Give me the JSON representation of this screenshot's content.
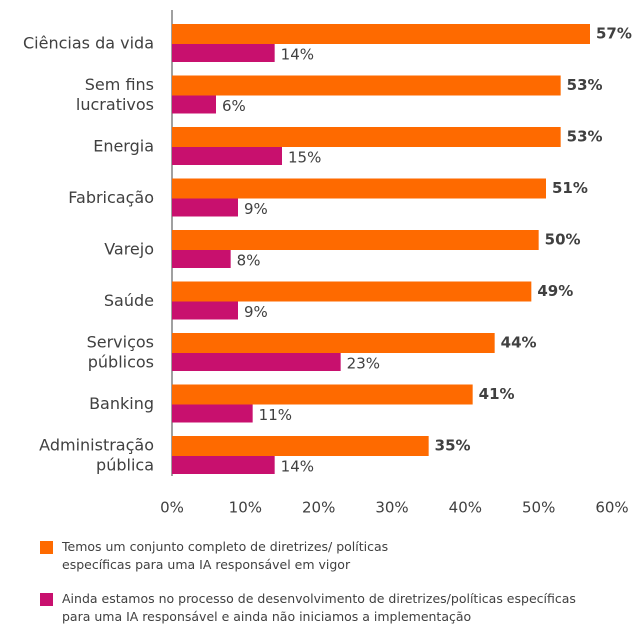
{
  "chart_data": {
    "type": "hbar",
    "categories": [
      [
        "Ciências da vida"
      ],
      [
        "Sem fins",
        "lucrativos"
      ],
      [
        "Energia"
      ],
      [
        "Fabricação"
      ],
      [
        "Varejo"
      ],
      [
        "Saúde"
      ],
      [
        "Serviços",
        "públicos"
      ],
      [
        "Banking"
      ],
      [
        "Administração",
        "pública"
      ]
    ],
    "series": [
      {
        "name": "Temos um conjunto completo de diretrizes/ políticas específicas para uma IA responsável em vigor",
        "color": "#fe6a00",
        "values": [
          57,
          53,
          53,
          51,
          50,
          49,
          44,
          41,
          35
        ],
        "value_labels": [
          "57%",
          "53%",
          "53%",
          "51%",
          "50%",
          "49%",
          "44%",
          "41%",
          "35%"
        ]
      },
      {
        "name": "Ainda estamos no processo de desenvolvimento de diretrizes/políticas específicas para uma IA responsável e ainda não iniciamos a implementação",
        "color": "#c8106e",
        "values": [
          14,
          6,
          15,
          9,
          8,
          9,
          23,
          11,
          14
        ],
        "value_labels": [
          "14%",
          "6%",
          "15%",
          "9%",
          "8%",
          "9%",
          "23%",
          "11%",
          "14%"
        ]
      }
    ],
    "xlim": [
      0,
      60
    ],
    "xticks": [
      {
        "value": 0,
        "label": "0%"
      },
      {
        "value": 10,
        "label": "10%"
      },
      {
        "value": 20,
        "label": "20%"
      },
      {
        "value": 30,
        "label": "30%"
      },
      {
        "value": 40,
        "label": "40%"
      },
      {
        "value": 50,
        "label": "50%"
      },
      {
        "value": 60,
        "label": "60%"
      }
    ],
    "legend": "bottom"
  }
}
